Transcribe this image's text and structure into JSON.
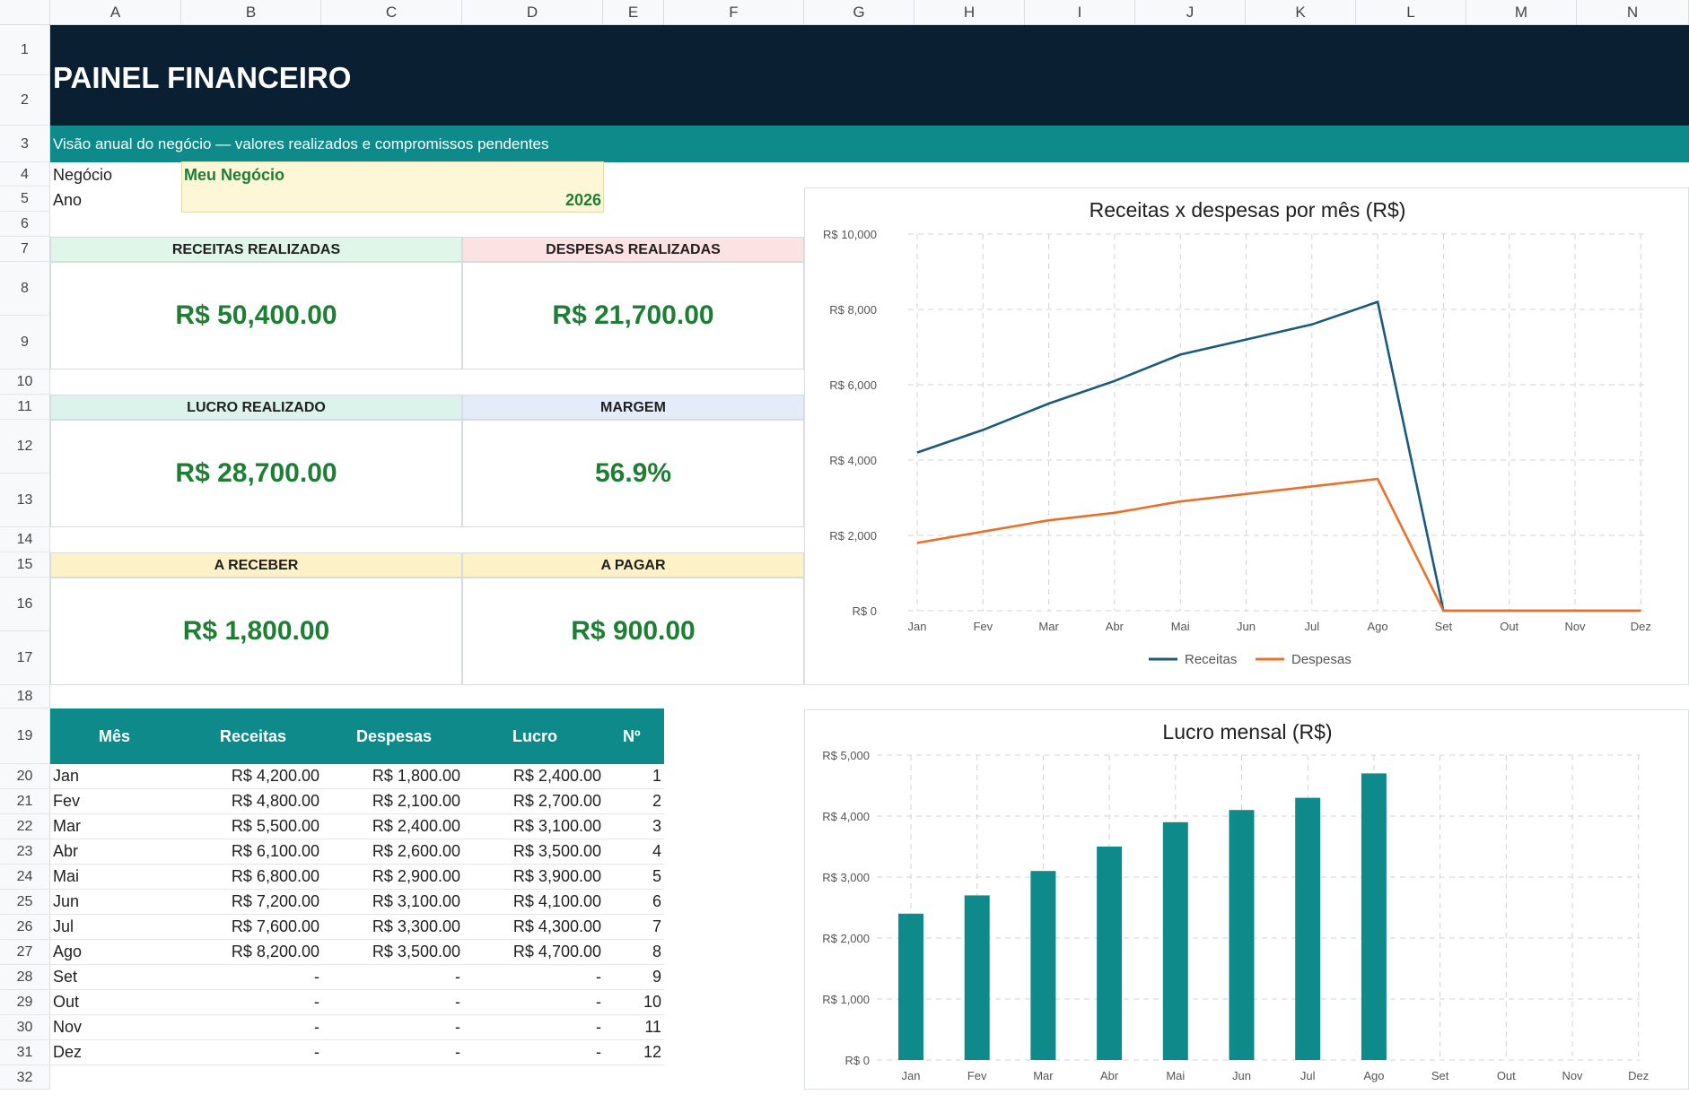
{
  "columns": [
    "A",
    "B",
    "C",
    "D",
    "E",
    "F",
    "G",
    "H",
    "I",
    "J",
    "K",
    "L",
    "M",
    "N"
  ],
  "rows": [
    "1",
    "2",
    "3",
    "4",
    "5",
    "6",
    "7",
    "8",
    "9",
    "10",
    "11",
    "12",
    "13",
    "14",
    "15",
    "16",
    "17",
    "18",
    "19",
    "20",
    "21",
    "22",
    "23",
    "24",
    "25",
    "26",
    "27",
    "28",
    "29",
    "30",
    "31",
    "32"
  ],
  "header": {
    "title": "PAINEL FINANCEIRO",
    "subtitle": "Visão anual do negócio — valores realizados e compromissos pendentes"
  },
  "inputs": {
    "business_label": "Negócio",
    "business_value": "Meu Negócio",
    "year_label": "Ano",
    "year_value": "2026"
  },
  "kpis": {
    "revenue": {
      "label": "RECEITAS REALIZADAS",
      "value": "R$ 50,400.00",
      "color": "#dff6e8"
    },
    "expenses": {
      "label": "DESPESAS REALIZADAS",
      "value": "R$ 21,700.00",
      "color": "#fde2e4"
    },
    "profit": {
      "label": "LUCRO REALIZADO",
      "value": "R$ 28,700.00",
      "color": "#dcf3ec"
    },
    "margin": {
      "label": "MARGEM",
      "value": "56.9%",
      "color": "#e5ecf9"
    },
    "receivable": {
      "label": "A RECEBER",
      "value": "R$ 1,800.00",
      "color": "#fdf1c8"
    },
    "payable": {
      "label": "A PAGAR",
      "value": "R$ 900.00",
      "color": "#fdf1c8"
    }
  },
  "table": {
    "headers": {
      "month": "Mês",
      "revenue": "Receitas",
      "expenses": "Despesas",
      "profit": "Lucro",
      "num": "Nº"
    },
    "rows": [
      {
        "month": "Jan",
        "revenue": "R$ 4,200.00",
        "expenses": "R$ 1,800.00",
        "profit": "R$ 2,400.00",
        "num": "1"
      },
      {
        "month": "Fev",
        "revenue": "R$ 4,800.00",
        "expenses": "R$ 2,100.00",
        "profit": "R$ 2,700.00",
        "num": "2"
      },
      {
        "month": "Mar",
        "revenue": "R$ 5,500.00",
        "expenses": "R$ 2,400.00",
        "profit": "R$ 3,100.00",
        "num": "3"
      },
      {
        "month": "Abr",
        "revenue": "R$ 6,100.00",
        "expenses": "R$ 2,600.00",
        "profit": "R$ 3,500.00",
        "num": "4"
      },
      {
        "month": "Mai",
        "revenue": "R$ 6,800.00",
        "expenses": "R$ 2,900.00",
        "profit": "R$ 3,900.00",
        "num": "5"
      },
      {
        "month": "Jun",
        "revenue": "R$ 7,200.00",
        "expenses": "R$ 3,100.00",
        "profit": "R$ 4,100.00",
        "num": "6"
      },
      {
        "month": "Jul",
        "revenue": "R$ 7,600.00",
        "expenses": "R$ 3,300.00",
        "profit": "R$ 4,300.00",
        "num": "7"
      },
      {
        "month": "Ago",
        "revenue": "R$ 8,200.00",
        "expenses": "R$ 3,500.00",
        "profit": "R$ 4,700.00",
        "num": "8"
      },
      {
        "month": "Set",
        "revenue": "-",
        "expenses": "-",
        "profit": "-",
        "num": "9"
      },
      {
        "month": "Out",
        "revenue": "-",
        "expenses": "-",
        "profit": "-",
        "num": "10"
      },
      {
        "month": "Nov",
        "revenue": "-",
        "expenses": "-",
        "profit": "-",
        "num": "11"
      },
      {
        "month": "Dez",
        "revenue": "-",
        "expenses": "-",
        "profit": "-",
        "num": "12"
      }
    ]
  },
  "chart_data": [
    {
      "type": "line",
      "title": "Receitas x despesas por mês (R$)",
      "categories": [
        "Jan",
        "Fev",
        "Mar",
        "Abr",
        "Mai",
        "Jun",
        "Jul",
        "Ago",
        "Set",
        "Out",
        "Nov",
        "Dez"
      ],
      "series": [
        {
          "name": "Receitas",
          "values": [
            4200,
            4800,
            5500,
            6100,
            6800,
            7200,
            7600,
            8200,
            0,
            0,
            0,
            0
          ],
          "color": "#1a5a7a"
        },
        {
          "name": "Despesas",
          "values": [
            1800,
            2100,
            2400,
            2600,
            2900,
            3100,
            3300,
            3500,
            0,
            0,
            0,
            0
          ],
          "color": "#e8702a"
        }
      ],
      "ylim": [
        0,
        10000
      ],
      "yticks": [
        "R$ 0",
        "R$ 2,000",
        "R$ 4,000",
        "R$ 6,000",
        "R$ 8,000",
        "R$ 10,000"
      ],
      "grid": true,
      "legend": "bottom"
    },
    {
      "type": "bar",
      "title": "Lucro mensal (R$)",
      "categories": [
        "Jan",
        "Fev",
        "Mar",
        "Abr",
        "Mai",
        "Jun",
        "Jul",
        "Ago",
        "Set",
        "Out",
        "Nov",
        "Dez"
      ],
      "series": [
        {
          "name": "Lucro",
          "values": [
            2400,
            2700,
            3100,
            3500,
            3900,
            4100,
            4300,
            4700,
            0,
            0,
            0,
            0
          ],
          "color": "#0f8a8a"
        }
      ],
      "ylim": [
        0,
        5000
      ],
      "yticks": [
        "R$ 0",
        "R$ 1,000",
        "R$ 2,000",
        "R$ 3,000",
        "R$ 4,000",
        "R$ 5,000"
      ],
      "grid": true,
      "legend": "none"
    }
  ]
}
